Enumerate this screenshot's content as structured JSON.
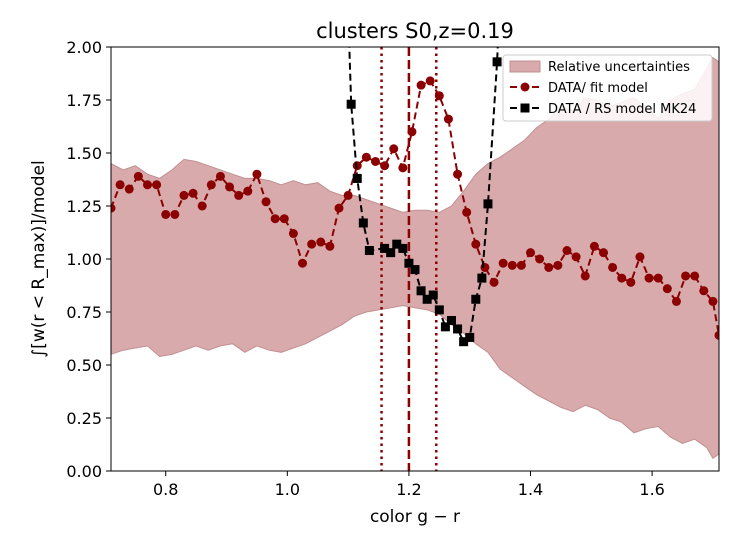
{
  "chart_data": {
    "type": "line",
    "title": "clusters S0,z=0.19",
    "xlabel": "color g − r",
    "ylabel": "∫[w(r < R_max)]/model",
    "xlim": [
      0.71,
      1.71
    ],
    "ylim": [
      0.0,
      2.0
    ],
    "xticks": [
      0.8,
      1.0,
      1.2,
      1.4,
      1.6
    ],
    "xtick_labels": [
      "0.8",
      "1.0",
      "1.2",
      "1.4",
      "1.6"
    ],
    "yticks": [
      0.0,
      0.25,
      0.5,
      0.75,
      1.0,
      1.25,
      1.5,
      1.75,
      2.0
    ],
    "ytick_labels": [
      "0.00",
      "0.25",
      "0.50",
      "0.75",
      "1.00",
      "1.25",
      "1.50",
      "1.75",
      "2.00"
    ],
    "grid": false,
    "legend_position": "top-right",
    "colors": {
      "band_fill": "#d9aaab",
      "band_edge": "#c08f92",
      "fit_model": "#8b0000",
      "rs_model": "#000000",
      "vline": "#8b0000"
    },
    "band": {
      "name": "Relative uncertainties",
      "x": [
        0.71,
        0.73,
        0.75,
        0.77,
        0.79,
        0.81,
        0.83,
        0.85,
        0.87,
        0.89,
        0.91,
        0.93,
        0.95,
        0.97,
        0.99,
        1.01,
        1.03,
        1.05,
        1.07,
        1.09,
        1.11,
        1.13,
        1.15,
        1.17,
        1.19,
        1.21,
        1.23,
        1.25,
        1.27,
        1.29,
        1.31,
        1.33,
        1.35,
        1.37,
        1.39,
        1.41,
        1.43,
        1.45,
        1.47,
        1.49,
        1.51,
        1.53,
        1.55,
        1.57,
        1.59,
        1.61,
        1.63,
        1.65,
        1.67,
        1.69,
        1.7,
        1.71
      ],
      "upper": [
        1.45,
        1.42,
        1.44,
        1.4,
        1.38,
        1.42,
        1.47,
        1.46,
        1.44,
        1.42,
        1.4,
        1.38,
        1.38,
        1.37,
        1.35,
        1.37,
        1.35,
        1.36,
        1.32,
        1.3,
        1.3,
        1.28,
        1.26,
        1.24,
        1.22,
        1.23,
        1.23,
        1.22,
        1.25,
        1.32,
        1.4,
        1.45,
        1.48,
        1.52,
        1.56,
        1.62,
        1.66,
        1.72,
        1.7,
        1.76,
        1.75,
        1.72,
        1.74,
        1.76,
        1.72,
        1.66,
        1.75,
        1.78,
        1.8,
        1.9,
        1.95,
        1.93
      ],
      "lower": [
        0.55,
        0.57,
        0.58,
        0.59,
        0.54,
        0.55,
        0.57,
        0.59,
        0.57,
        0.59,
        0.6,
        0.56,
        0.59,
        0.57,
        0.56,
        0.58,
        0.6,
        0.63,
        0.66,
        0.69,
        0.73,
        0.75,
        0.76,
        0.77,
        0.78,
        0.77,
        0.76,
        0.74,
        0.69,
        0.65,
        0.6,
        0.56,
        0.48,
        0.44,
        0.4,
        0.36,
        0.33,
        0.3,
        0.28,
        0.31,
        0.29,
        0.25,
        0.23,
        0.18,
        0.2,
        0.21,
        0.16,
        0.13,
        0.15,
        0.11,
        0.06,
        0.08
      ]
    },
    "series": [
      {
        "name": "DATA/ fit model",
        "marker": "circle",
        "x": [
          0.71,
          0.725,
          0.74,
          0.755,
          0.77,
          0.785,
          0.8,
          0.815,
          0.83,
          0.845,
          0.86,
          0.875,
          0.89,
          0.905,
          0.92,
          0.935,
          0.95,
          0.965,
          0.98,
          0.995,
          1.01,
          1.025,
          1.04,
          1.055,
          1.07,
          1.085,
          1.1,
          1.115,
          1.13,
          1.145,
          1.16,
          1.175,
          1.19,
          1.205,
          1.22,
          1.235,
          1.25,
          1.265,
          1.28,
          1.295,
          1.31,
          1.325,
          1.34,
          1.355,
          1.37,
          1.385,
          1.4,
          1.415,
          1.43,
          1.445,
          1.46,
          1.475,
          1.49,
          1.505,
          1.52,
          1.535,
          1.55,
          1.565,
          1.58,
          1.595,
          1.61,
          1.625,
          1.64,
          1.655,
          1.67,
          1.685,
          1.7,
          1.71
        ],
        "y": [
          1.24,
          1.35,
          1.33,
          1.39,
          1.35,
          1.35,
          1.21,
          1.21,
          1.3,
          1.31,
          1.25,
          1.35,
          1.39,
          1.34,
          1.3,
          1.32,
          1.4,
          1.27,
          1.19,
          1.19,
          1.12,
          0.98,
          1.07,
          1.08,
          1.06,
          1.24,
          1.3,
          1.44,
          1.48,
          1.46,
          1.44,
          1.52,
          1.43,
          1.6,
          1.82,
          1.84,
          1.77,
          1.66,
          1.4,
          1.22,
          1.07,
          0.96,
          0.89,
          0.98,
          0.97,
          0.97,
          1.03,
          1.0,
          0.96,
          0.97,
          1.04,
          1.01,
          0.92,
          1.06,
          1.03,
          0.96,
          0.91,
          0.89,
          1.01,
          0.91,
          0.91,
          0.86,
          0.8,
          0.92,
          0.92,
          0.85,
          0.8,
          0.64
        ]
      },
      {
        "name": "DATA / RS model MK24",
        "marker": "square",
        "x": [
          1.105,
          1.115,
          1.125,
          1.135,
          1.16,
          1.17,
          1.18,
          1.19,
          1.2,
          1.21,
          1.22,
          1.23,
          1.24,
          1.25,
          1.26,
          1.27,
          1.28,
          1.29,
          1.3,
          1.31,
          1.32,
          1.33,
          1.345
        ],
        "y": [
          1.73,
          1.38,
          1.17,
          1.04,
          1.05,
          1.03,
          1.07,
          1.05,
          0.98,
          0.95,
          0.85,
          0.81,
          0.83,
          0.76,
          0.68,
          0.71,
          0.67,
          0.61,
          0.63,
          0.81,
          0.91,
          1.26,
          1.93
        ]
      }
    ],
    "vlines": [
      {
        "x": 1.155,
        "style": "dotted"
      },
      {
        "x": 1.2,
        "style": "dashed"
      },
      {
        "x": 1.245,
        "style": "dotted"
      }
    ]
  }
}
